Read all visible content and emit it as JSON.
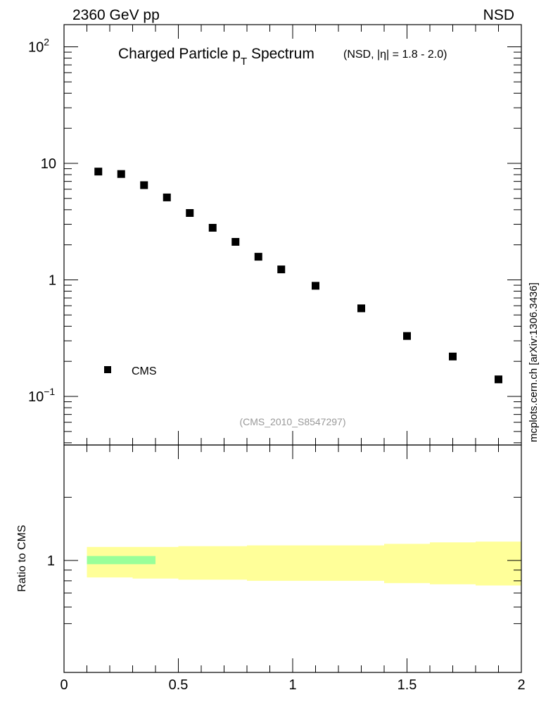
{
  "header": {
    "left": "2360 GeV pp",
    "right": "NSD"
  },
  "title": {
    "main": "Charged Particle p",
    "sub": "T",
    "after": " Spectrum",
    "small": "(NSD, |η| = 1.8 - 2.0)"
  },
  "watermark": "(CMS_2010_S8547297)",
  "side_label": "mcplots.cern.ch [arXiv:1306.3436]",
  "legend": {
    "label": "CMS"
  },
  "ratio_ylabel": "Ratio to CMS",
  "colors": {
    "data_marker": "#000000",
    "band_outer": "#ffff99",
    "band_inner": "#99ff99",
    "watermark": "#999999"
  },
  "chart_data": [
    {
      "type": "scatter",
      "yscale": "log",
      "xlim": [
        0,
        2
      ],
      "ylim": [
        0.04,
        150
      ],
      "y_ticks": [
        "10^-1",
        "1",
        "10",
        "10^2"
      ],
      "series": [
        {
          "name": "CMS",
          "x": [
            0.15,
            0.25,
            0.35,
            0.45,
            0.55,
            0.65,
            0.75,
            0.85,
            0.95,
            1.1,
            1.3,
            1.5,
            1.7,
            1.9
          ],
          "y": [
            8.5,
            8.1,
            6.5,
            5.1,
            3.75,
            2.8,
            2.12,
            1.58,
            1.23,
            0.89,
            0.57,
            0.33,
            0.22,
            0.14
          ]
        }
      ]
    },
    {
      "type": "area",
      "ylabel": "Ratio to CMS",
      "xlim": [
        0,
        2
      ],
      "ylim": [
        0.47,
        2.0
      ],
      "x_ticks": [
        "0",
        "0.5",
        "1",
        "1.5",
        "2"
      ],
      "y_ticks": [
        "1"
      ],
      "bins": [
        {
          "x0": 0.1,
          "x1": 0.2,
          "outer": [
            0.83,
            1.16
          ],
          "inner": [
            0.96,
            1.05
          ]
        },
        {
          "x0": 0.2,
          "x1": 0.3,
          "outer": [
            0.83,
            1.16
          ],
          "inner": [
            0.96,
            1.05
          ]
        },
        {
          "x0": 0.3,
          "x1": 0.4,
          "outer": [
            0.82,
            1.16
          ],
          "inner": [
            0.96,
            1.05
          ]
        },
        {
          "x0": 0.4,
          "x1": 0.5,
          "outer": [
            0.82,
            1.16
          ]
        },
        {
          "x0": 0.5,
          "x1": 0.6,
          "outer": [
            0.81,
            1.17
          ]
        },
        {
          "x0": 0.6,
          "x1": 0.7,
          "outer": [
            0.81,
            1.17
          ]
        },
        {
          "x0": 0.7,
          "x1": 0.8,
          "outer": [
            0.81,
            1.17
          ]
        },
        {
          "x0": 0.8,
          "x1": 0.9,
          "outer": [
            0.8,
            1.18
          ]
        },
        {
          "x0": 0.9,
          "x1": 1.0,
          "outer": [
            0.8,
            1.18
          ]
        },
        {
          "x0": 1.0,
          "x1": 1.2,
          "outer": [
            0.8,
            1.18
          ]
        },
        {
          "x0": 1.2,
          "x1": 1.4,
          "outer": [
            0.8,
            1.18
          ]
        },
        {
          "x0": 1.4,
          "x1": 1.6,
          "outer": [
            0.78,
            1.2
          ]
        },
        {
          "x0": 1.6,
          "x1": 1.8,
          "outer": [
            0.77,
            1.22
          ]
        },
        {
          "x0": 1.8,
          "x1": 2.0,
          "outer": [
            0.76,
            1.23
          ]
        }
      ]
    }
  ]
}
